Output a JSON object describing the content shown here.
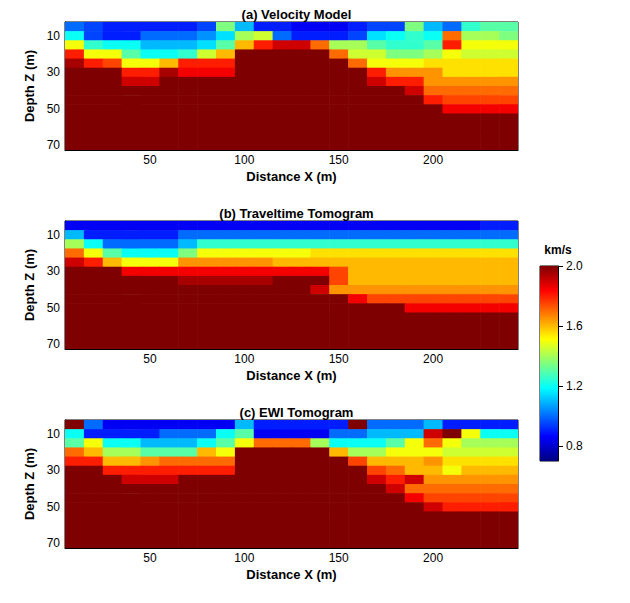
{
  "chart_data": [
    {
      "type": "heatmap",
      "title": "(a) Velocity Model",
      "xlabel": "Distance X (m)",
      "ylabel": "Depth Z (m)",
      "xlim": [
        5,
        245
      ],
      "ylim": [
        2.5,
        72.5
      ],
      "xticks": [
        50,
        100,
        150,
        200
      ],
      "yticks": [
        10,
        30,
        50,
        70
      ],
      "x": [
        10,
        20,
        30,
        40,
        50,
        60,
        70,
        80,
        90,
        100,
        110,
        120,
        130,
        140,
        150,
        160,
        170,
        180,
        190,
        200,
        210,
        220,
        230,
        240
      ],
      "y": [
        5,
        10,
        15,
        20,
        25,
        30,
        35,
        40,
        45,
        50,
        55,
        60,
        65,
        70
      ],
      "values": [
        [
          1.0,
          0.95,
          0.9,
          0.9,
          0.9,
          0.9,
          0.9,
          0.95,
          1.35,
          1.1,
          0.9,
          0.9,
          0.85,
          0.85,
          0.85,
          0.9,
          0.95,
          0.95,
          1.35,
          1.1,
          1.0,
          1.25,
          1.3,
          1.3
        ],
        [
          1.2,
          0.95,
          0.9,
          0.9,
          1.0,
          1.0,
          1.0,
          1.05,
          1.15,
          1.4,
          1.45,
          1.0,
          0.9,
          0.9,
          0.9,
          0.95,
          1.15,
          1.2,
          1.25,
          1.2,
          1.7,
          1.4,
          1.4,
          1.35
        ],
        [
          1.5,
          1.25,
          1.2,
          1.2,
          1.1,
          1.1,
          1.1,
          1.15,
          1.3,
          1.6,
          1.8,
          1.9,
          1.9,
          1.7,
          1.4,
          1.4,
          1.3,
          1.25,
          1.25,
          1.3,
          1.8,
          1.5,
          1.5,
          1.5
        ],
        [
          1.8,
          1.5,
          1.5,
          1.3,
          1.2,
          1.2,
          1.25,
          1.45,
          1.6,
          2,
          2,
          2,
          2,
          2,
          1.7,
          1.45,
          1.45,
          1.35,
          1.35,
          1.4,
          1.5,
          1.45,
          1.45,
          1.45
        ],
        [
          1.95,
          1.8,
          1.75,
          1.5,
          1.5,
          1.6,
          1.8,
          1.8,
          1.8,
          2,
          2,
          2,
          2,
          2,
          2,
          1.7,
          1.5,
          1.5,
          1.5,
          1.55,
          1.55,
          1.55,
          1.55,
          1.55
        ],
        [
          2,
          2,
          2,
          1.8,
          1.8,
          1.95,
          1.85,
          1.85,
          1.85,
          2,
          2,
          2,
          2,
          2,
          2,
          2,
          1.8,
          1.65,
          1.65,
          1.65,
          1.55,
          1.55,
          1.55,
          1.55
        ],
        [
          2,
          2,
          2,
          1.9,
          1.9,
          2,
          2,
          2,
          2,
          2,
          2,
          2,
          2,
          2,
          2,
          2,
          1.9,
          1.8,
          1.8,
          1.65,
          1.65,
          1.65,
          1.65,
          1.65
        ],
        [
          2,
          2,
          2,
          2,
          2,
          2,
          2,
          2,
          2,
          2,
          2,
          2,
          2,
          2,
          2,
          2,
          2,
          2,
          1.9,
          1.7,
          1.7,
          1.7,
          1.7,
          1.7
        ],
        [
          2,
          2,
          2,
          2,
          2,
          2,
          2,
          2,
          2,
          2,
          2,
          2,
          2,
          2,
          2,
          2,
          2,
          2,
          2,
          1.8,
          1.75,
          1.75,
          1.75,
          1.75
        ],
        [
          2,
          2,
          2,
          2,
          2,
          2,
          2,
          2,
          2,
          2,
          2,
          2,
          2,
          2,
          2,
          2,
          2,
          2,
          2,
          2,
          1.85,
          1.85,
          1.85,
          1.85
        ],
        [
          2,
          2,
          2,
          2,
          2,
          2,
          2,
          2,
          2,
          2,
          2,
          2,
          2,
          2,
          2,
          2,
          2,
          2,
          2,
          2,
          2,
          2,
          2,
          2
        ],
        [
          2,
          2,
          2,
          2,
          2,
          2,
          2,
          2,
          2,
          2,
          2,
          2,
          2,
          2,
          2,
          2,
          2,
          2,
          2,
          2,
          2,
          2,
          2,
          2
        ],
        [
          2,
          2,
          2,
          2,
          2,
          2,
          2,
          2,
          2,
          2,
          2,
          2,
          2,
          2,
          2,
          2,
          2,
          2,
          2,
          2,
          2,
          2,
          2,
          2
        ],
        [
          2,
          2,
          2,
          2,
          2,
          2,
          2,
          2,
          2,
          2,
          2,
          2,
          2,
          2,
          2,
          2,
          2,
          2,
          2,
          2,
          2,
          2,
          2,
          2
        ]
      ]
    },
    {
      "type": "heatmap",
      "title": "(b) Traveltime Tomogram",
      "xlabel": "Distance X (m)",
      "ylabel": "Depth Z (m)",
      "xlim": [
        5,
        245
      ],
      "ylim": [
        2.5,
        72.5
      ],
      "xticks": [
        50,
        100,
        150,
        200
      ],
      "yticks": [
        10,
        30,
        50,
        70
      ],
      "x": [
        10,
        20,
        30,
        40,
        50,
        60,
        70,
        80,
        90,
        100,
        110,
        120,
        130,
        140,
        150,
        160,
        170,
        180,
        190,
        200,
        210,
        220,
        230,
        240
      ],
      "y": [
        5,
        10,
        15,
        20,
        25,
        30,
        35,
        40,
        45,
        50,
        55,
        60,
        65,
        70
      ],
      "values": [
        [
          0.85,
          0.85,
          0.85,
          0.85,
          0.85,
          0.85,
          0.85,
          0.85,
          0.85,
          0.85,
          0.85,
          0.85,
          0.85,
          0.85,
          0.85,
          0.85,
          0.85,
          0.85,
          0.85,
          0.85,
          0.85,
          0.85,
          0.9,
          0.9
        ],
        [
          1.1,
          0.9,
          0.9,
          0.9,
          0.9,
          0.9,
          1.0,
          1.0,
          1.0,
          1.0,
          1.0,
          1.0,
          1.0,
          1.0,
          1.0,
          1.0,
          1.0,
          1.0,
          1.0,
          1.0,
          1.0,
          1.0,
          1.0,
          1.0
        ],
        [
          1.4,
          1.2,
          1.0,
          1.0,
          1.0,
          1.0,
          1.1,
          1.25,
          1.25,
          1.25,
          1.25,
          1.25,
          1.25,
          1.25,
          1.25,
          1.25,
          1.25,
          1.25,
          1.25,
          1.25,
          1.25,
          1.25,
          1.25,
          1.25
        ],
        [
          1.7,
          1.5,
          1.3,
          1.2,
          1.2,
          1.2,
          1.35,
          1.5,
          1.5,
          1.5,
          1.5,
          1.5,
          1.5,
          1.55,
          1.55,
          1.55,
          1.55,
          1.55,
          1.55,
          1.55,
          1.55,
          1.55,
          1.55,
          1.55
        ],
        [
          1.9,
          1.8,
          1.6,
          1.5,
          1.5,
          1.5,
          1.65,
          1.65,
          1.65,
          1.65,
          1.65,
          1.6,
          1.6,
          1.6,
          1.6,
          1.6,
          1.6,
          1.6,
          1.6,
          1.6,
          1.6,
          1.6,
          1.6,
          1.6
        ],
        [
          2,
          2,
          2,
          1.85,
          1.85,
          1.85,
          1.85,
          1.85,
          1.85,
          1.85,
          1.85,
          1.85,
          1.85,
          1.85,
          1.75,
          1.6,
          1.6,
          1.6,
          1.6,
          1.6,
          1.6,
          1.6,
          1.6,
          1.6
        ],
        [
          2,
          2,
          2,
          2,
          2,
          2,
          1.95,
          1.95,
          1.95,
          1.95,
          1.95,
          2,
          2,
          2,
          1.75,
          1.6,
          1.6,
          1.6,
          1.6,
          1.6,
          1.6,
          1.6,
          1.6,
          1.6
        ],
        [
          2,
          2,
          2,
          2,
          2,
          2,
          2,
          2,
          2,
          2,
          2,
          2,
          2,
          1.9,
          1.65,
          1.65,
          1.65,
          1.65,
          1.65,
          1.65,
          1.65,
          1.65,
          1.65,
          1.65
        ],
        [
          2,
          2,
          2,
          2,
          2,
          2,
          2,
          2,
          2,
          2,
          2,
          2,
          2,
          2,
          2,
          1.85,
          1.75,
          1.75,
          1.75,
          1.75,
          1.75,
          1.75,
          1.75,
          1.75
        ],
        [
          2,
          2,
          2,
          2,
          2,
          2,
          2,
          2,
          2,
          2,
          2,
          2,
          2,
          2,
          2,
          2,
          2,
          2,
          1.85,
          1.85,
          1.85,
          1.85,
          1.85,
          1.85
        ],
        [
          2,
          2,
          2,
          2,
          2,
          2,
          2,
          2,
          2,
          2,
          2,
          2,
          2,
          2,
          2,
          2,
          2,
          2,
          2,
          2,
          2,
          2,
          2,
          2
        ],
        [
          2,
          2,
          2,
          2,
          2,
          2,
          2,
          2,
          2,
          2,
          2,
          2,
          2,
          2,
          2,
          2,
          2,
          2,
          2,
          2,
          2,
          2,
          2,
          2
        ],
        [
          2,
          2,
          2,
          2,
          2,
          2,
          2,
          2,
          2,
          2,
          2,
          2,
          2,
          2,
          2,
          2,
          2,
          2,
          2,
          2,
          2,
          2,
          2,
          2
        ],
        [
          2,
          2,
          2,
          2,
          2,
          2,
          2,
          2,
          2,
          2,
          2,
          2,
          2,
          2,
          2,
          2,
          2,
          2,
          2,
          2,
          2,
          2,
          2,
          2
        ]
      ],
      "colorbar": {
        "label": "km/s",
        "range": [
          0.7,
          2.0
        ],
        "ticks": [
          0.8,
          1.2,
          1.6,
          {
            "value": 2,
            "label": "2.0"
          }
        ]
      }
    },
    {
      "type": "heatmap",
      "title": "(c) EWI Tomogram",
      "xlabel": "Distance X (m)",
      "ylabel": "Depth Z (m)",
      "xlim": [
        5,
        245
      ],
      "ylim": [
        2.5,
        72.5
      ],
      "xticks": [
        50,
        100,
        150,
        200
      ],
      "yticks": [
        10,
        30,
        50,
        70
      ],
      "x": [
        10,
        20,
        30,
        40,
        50,
        60,
        70,
        80,
        90,
        100,
        110,
        120,
        130,
        140,
        150,
        160,
        170,
        180,
        190,
        200,
        210,
        220,
        230,
        240
      ],
      "y": [
        5,
        10,
        15,
        20,
        25,
        30,
        35,
        40,
        45,
        50,
        55,
        60,
        65,
        70
      ],
      "values": [
        [
          2,
          1.0,
          0.85,
          0.85,
          0.85,
          0.85,
          0.85,
          0.85,
          0.85,
          1.1,
          0.9,
          0.9,
          0.9,
          0.9,
          0.9,
          2,
          1.0,
          1.0,
          1.0,
          1.1,
          0.9,
          0.9,
          0.9,
          0.9
        ],
        [
          1.2,
          0.9,
          0.9,
          0.9,
          0.9,
          1.0,
          1.0,
          1.0,
          1.2,
          1.3,
          0.85,
          0.85,
          0.85,
          0.85,
          1.0,
          1.0,
          1.1,
          1.1,
          1.1,
          1.9,
          2,
          1.5,
          1.2,
          1.2
        ],
        [
          1.3,
          1.5,
          1.2,
          1.2,
          1.1,
          1.1,
          1.1,
          1.2,
          1.3,
          1.5,
          1.7,
          1.7,
          1.7,
          1.4,
          1.2,
          1.2,
          1.2,
          1.3,
          1.5,
          1.7,
          1.5,
          1.4,
          1.4,
          1.4
        ],
        [
          1.7,
          1.6,
          1.4,
          1.4,
          1.3,
          1.3,
          1.3,
          1.6,
          1.5,
          2,
          2,
          2,
          2,
          2,
          1.6,
          1.4,
          1.4,
          1.5,
          1.5,
          1.5,
          1.45,
          1.45,
          1.45,
          1.45
        ],
        [
          1.8,
          1.8,
          1.6,
          1.6,
          1.65,
          1.7,
          1.7,
          1.7,
          1.7,
          2,
          2,
          2,
          2,
          2,
          2,
          1.75,
          1.6,
          1.6,
          1.6,
          1.65,
          1.55,
          1.55,
          1.55,
          1.55
        ],
        [
          2,
          2,
          1.8,
          1.8,
          1.8,
          1.8,
          1.8,
          1.8,
          1.8,
          2,
          2,
          2,
          2,
          2,
          2,
          2,
          1.75,
          1.7,
          1.6,
          1.6,
          1.5,
          1.6,
          1.6,
          1.6
        ],
        [
          2,
          2,
          2,
          1.9,
          1.9,
          1.9,
          2,
          2,
          2,
          2,
          2,
          2,
          2,
          2,
          2,
          2,
          1.9,
          1.8,
          1.9,
          1.65,
          1.65,
          1.65,
          1.65,
          1.65
        ],
        [
          2,
          2,
          2,
          2,
          2,
          2,
          2,
          2,
          2,
          2,
          2,
          2,
          2,
          2,
          2,
          2,
          2,
          1.9,
          1.7,
          1.7,
          1.7,
          1.7,
          1.7,
          1.7
        ],
        [
          2,
          2,
          2,
          2,
          2,
          2,
          2,
          2,
          2,
          2,
          2,
          2,
          2,
          2,
          2,
          2,
          2,
          2,
          1.85,
          1.75,
          1.75,
          1.75,
          1.75,
          1.75
        ],
        [
          2,
          2,
          2,
          2,
          2,
          2,
          2,
          2,
          2,
          2,
          2,
          2,
          2,
          2,
          2,
          2,
          2,
          2,
          2,
          1.9,
          1.8,
          1.8,
          1.8,
          1.8
        ],
        [
          2,
          2,
          2,
          2,
          2,
          2,
          2,
          2,
          2,
          2,
          2,
          2,
          2,
          2,
          2,
          2,
          2,
          2,
          2,
          2,
          2,
          2,
          2,
          2
        ],
        [
          2,
          2,
          2,
          2,
          2,
          2,
          2,
          2,
          2,
          2,
          2,
          2,
          2,
          2,
          2,
          2,
          2,
          2,
          2,
          2,
          2,
          2,
          2,
          2
        ],
        [
          2,
          2,
          2,
          2,
          2,
          2,
          2,
          2,
          2,
          2,
          2,
          2,
          2,
          2,
          2,
          2,
          2,
          2,
          2,
          2,
          2,
          2,
          2,
          2
        ],
        [
          2,
          2,
          2,
          2,
          2,
          2,
          2,
          2,
          2,
          2,
          2,
          2,
          2,
          2,
          2,
          2,
          2,
          2,
          2,
          2,
          2,
          2,
          2,
          2
        ]
      ]
    }
  ]
}
